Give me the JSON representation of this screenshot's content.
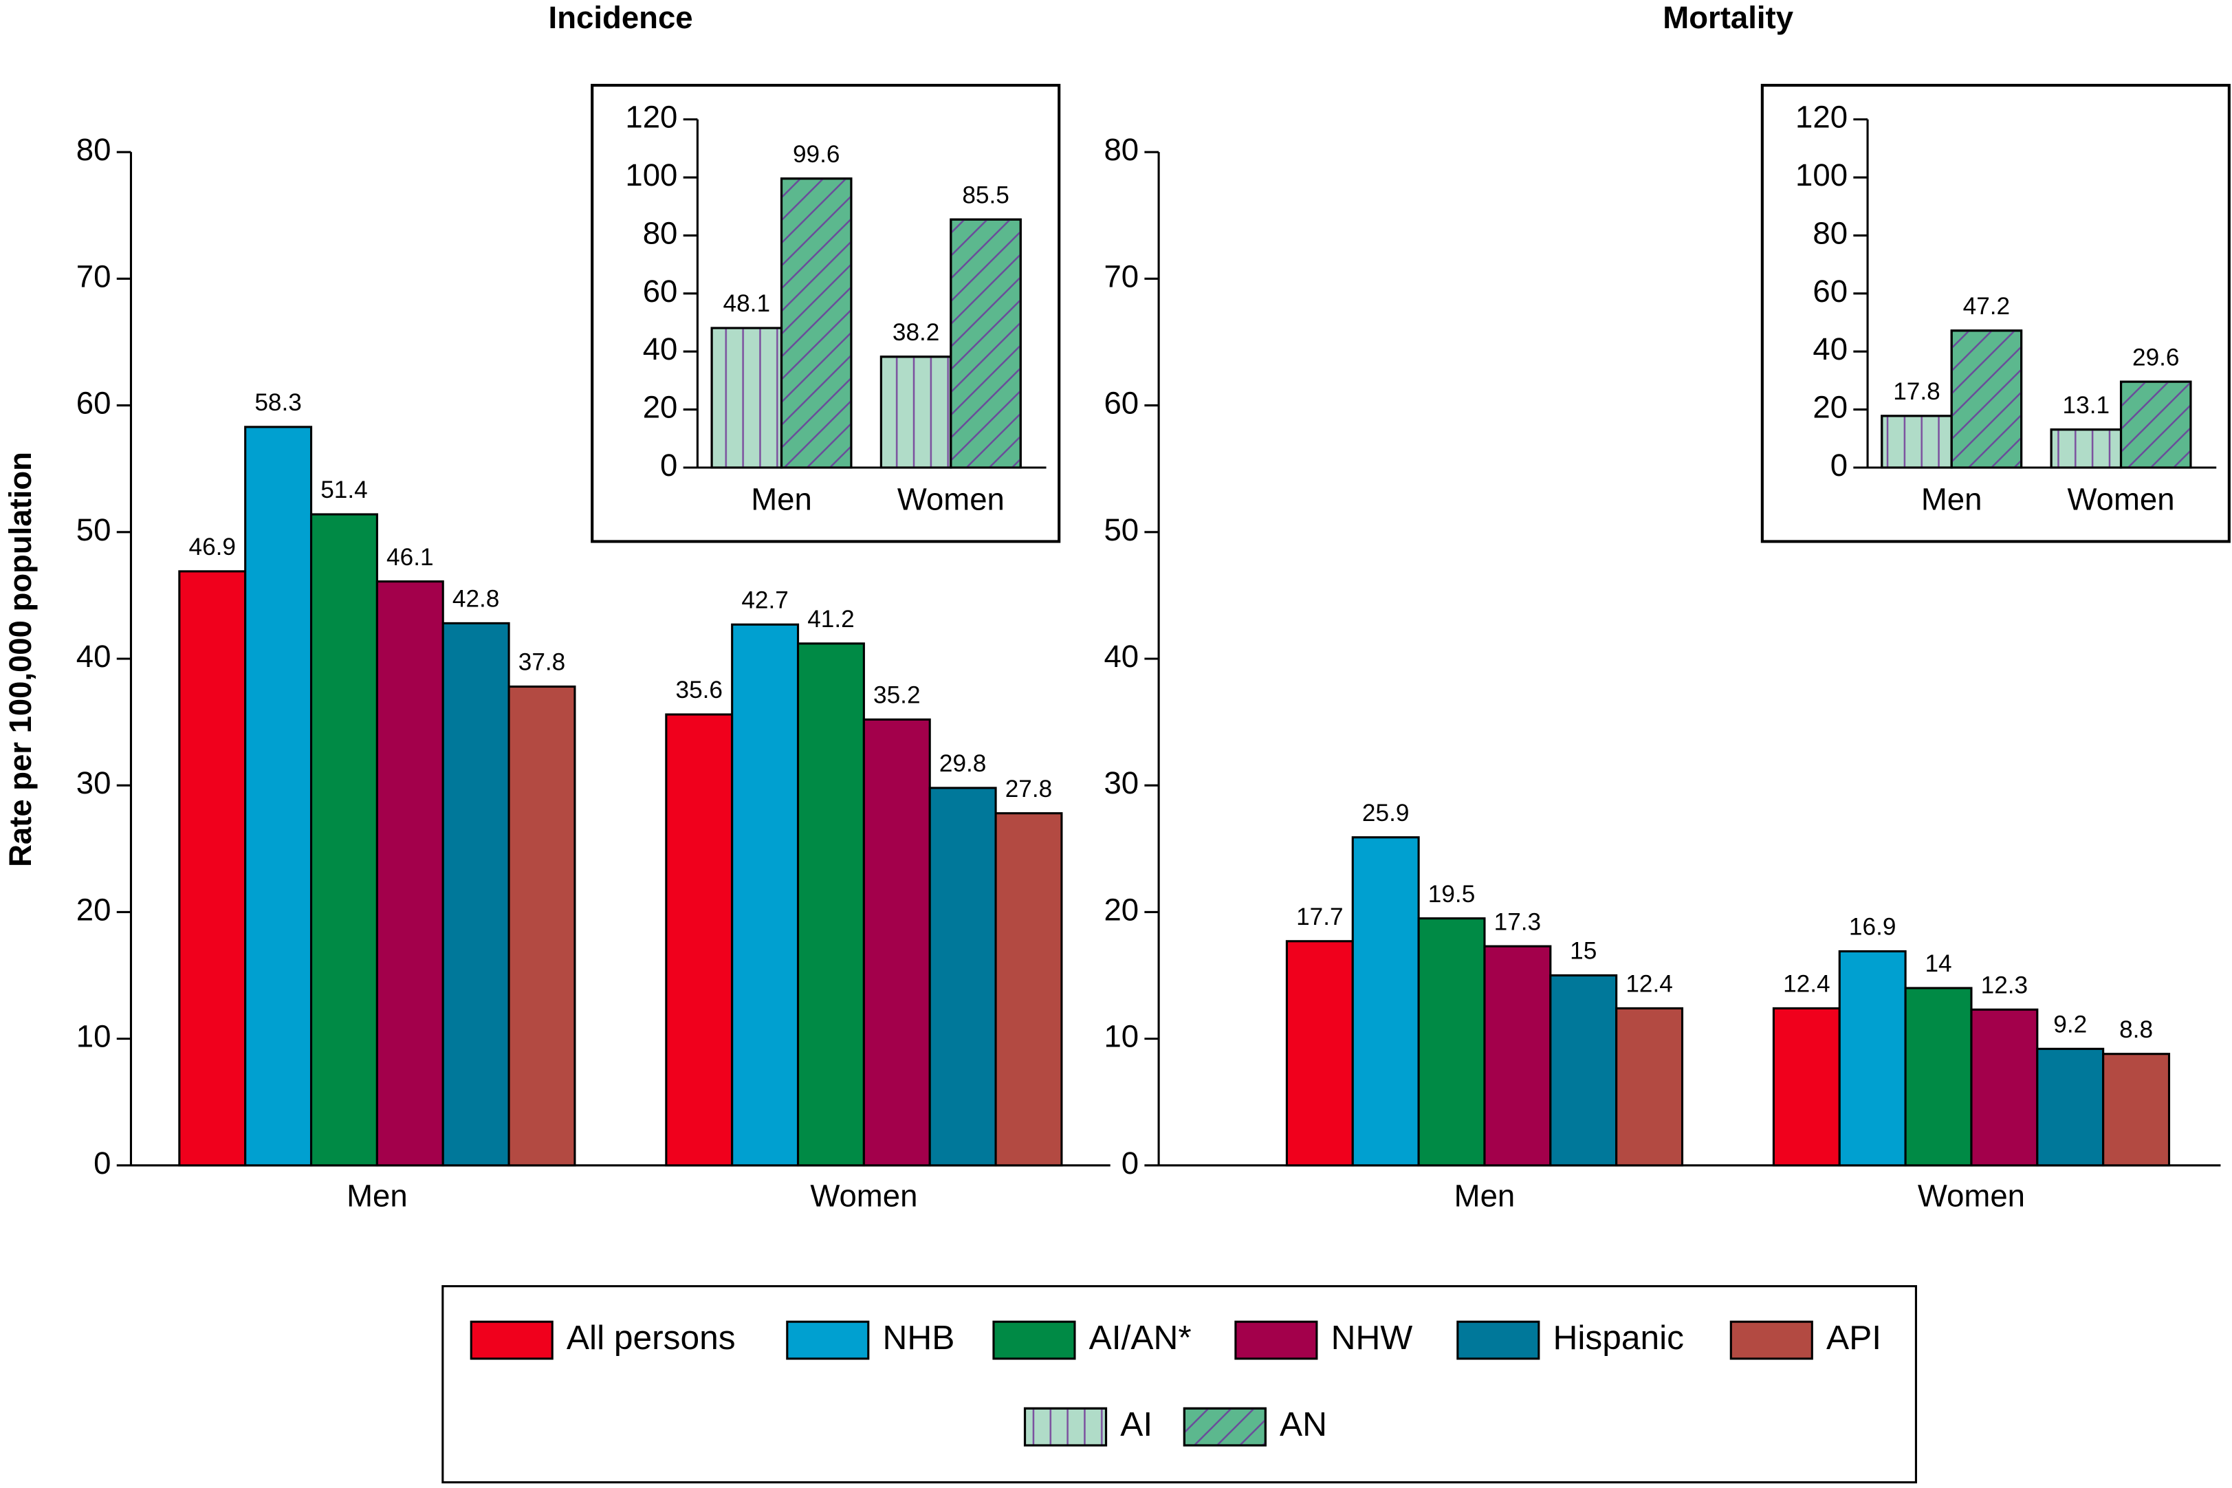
{
  "chart_data": [
    {
      "type": "bar",
      "title": "Incidence",
      "y_label": "Rate per 100,000 population",
      "categories": [
        "Men",
        "Women"
      ],
      "series": [
        {
          "name": "All persons",
          "color": "#f0001c",
          "values": [
            46.9,
            35.6
          ]
        },
        {
          "name": "NHB",
          "color": "#00a0d0",
          "values": [
            58.3,
            42.7
          ]
        },
        {
          "name": "AI/AN*",
          "color": "#008a45",
          "values": [
            51.4,
            41.2
          ]
        },
        {
          "name": "NHW",
          "color": "#a3004b",
          "values": [
            46.1,
            35.2
          ]
        },
        {
          "name": "Hispanic",
          "color": "#00789a",
          "values": [
            42.8,
            29.8
          ]
        },
        {
          "name": "API",
          "color": "#b34a42",
          "values": [
            37.8,
            27.8
          ]
        }
      ],
      "ylim": [
        0,
        80
      ],
      "yticks": [
        0,
        10,
        20,
        30,
        40,
        50,
        60,
        70,
        80
      ]
    },
    {
      "type": "bar",
      "categories": [
        "Men",
        "Women"
      ],
      "series": [
        {
          "name": "AI",
          "color": "#b0dcc8",
          "hatch": "vertical",
          "values": [
            48.1,
            38.2
          ]
        },
        {
          "name": "AN",
          "color": "#5cb88e",
          "hatch": "diagonal",
          "values": [
            99.6,
            85.5
          ]
        }
      ],
      "ylim": [
        0,
        120
      ],
      "yticks": [
        0,
        20,
        40,
        60,
        80,
        100,
        120
      ]
    },
    {
      "type": "bar",
      "title": "Mortality",
      "categories": [
        "Men",
        "Women"
      ],
      "series": [
        {
          "color": "#f0001c",
          "values": [
            17.7,
            12.4
          ]
        },
        {
          "color": "#00a0d0",
          "values": [
            25.9,
            16.9
          ]
        },
        {
          "color": "#008a45",
          "values": [
            19.5,
            14
          ]
        },
        {
          "color": "#a3004b",
          "values": [
            17.3,
            12.3
          ]
        },
        {
          "color": "#00789a",
          "values": [
            15,
            9.2
          ]
        },
        {
          "color": "#b34a42",
          "values": [
            12.4,
            8.8
          ]
        }
      ],
      "ylim": [
        0,
        80
      ],
      "yticks": [
        0,
        10,
        20,
        30,
        40,
        50,
        60,
        70,
        80
      ]
    },
    {
      "type": "bar",
      "categories": [
        "Men",
        "Women"
      ],
      "series": [
        {
          "color": "#b0dcc8",
          "hatch": "vertical",
          "values": [
            17.8,
            13.1
          ]
        },
        {
          "color": "#5cb88e",
          "hatch": "diagonal",
          "values": [
            47.2,
            29.6
          ]
        }
      ],
      "ylim": [
        0,
        120
      ],
      "yticks": [
        0,
        20,
        40,
        60,
        80,
        100,
        120
      ]
    }
  ]
}
